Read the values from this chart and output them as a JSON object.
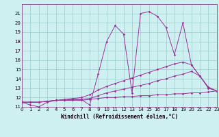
{
  "xlabel": "Windchill (Refroidissement éolien,°C)",
  "xlim": [
    0,
    23
  ],
  "ylim": [
    11,
    22
  ],
  "ytick_labels": [
    "11",
    "12",
    "13",
    "14",
    "15",
    "16",
    "17",
    "18",
    "19",
    "20",
    "21"
  ],
  "yticks": [
    11,
    12,
    13,
    14,
    15,
    16,
    17,
    18,
    19,
    20,
    21
  ],
  "xticks": [
    0,
    1,
    2,
    3,
    4,
    5,
    6,
    7,
    8,
    9,
    10,
    11,
    12,
    13,
    14,
    15,
    16,
    17,
    18,
    19,
    20,
    21,
    22,
    23
  ],
  "bg_color": "#cff0f0",
  "line_color": "#993399",
  "grid_color": "#99cccc",
  "lines": [
    {
      "x": [
        0,
        1,
        2,
        3,
        4,
        5,
        6,
        7,
        8,
        9,
        10,
        11,
        12,
        13,
        14,
        15,
        16,
        17,
        18,
        19,
        20,
        21,
        22,
        23
      ],
      "y": [
        11.5,
        11.2,
        11.0,
        11.5,
        11.7,
        11.7,
        11.8,
        11.8,
        11.2,
        14.5,
        18.0,
        19.7,
        18.8,
        12.5,
        21.0,
        21.2,
        20.7,
        19.5,
        16.6,
        20.0,
        15.5,
        14.3,
        13.0,
        12.7
      ]
    },
    {
      "x": [
        0,
        1,
        2,
        3,
        4,
        5,
        6,
        7,
        8,
        9,
        10,
        11,
        12,
        13,
        14,
        15,
        16,
        17,
        18,
        19,
        20,
        21,
        22,
        23
      ],
      "y": [
        11.5,
        11.5,
        11.5,
        11.6,
        11.7,
        11.8,
        11.9,
        12.0,
        12.3,
        12.8,
        13.2,
        13.5,
        13.8,
        14.1,
        14.4,
        14.7,
        15.0,
        15.3,
        15.6,
        15.8,
        15.5,
        14.3,
        13.1,
        12.7
      ]
    },
    {
      "x": [
        0,
        1,
        2,
        3,
        4,
        5,
        6,
        7,
        8,
        9,
        10,
        11,
        12,
        13,
        14,
        15,
        16,
        17,
        18,
        19,
        20,
        21,
        22,
        23
      ],
      "y": [
        11.5,
        11.5,
        11.5,
        11.6,
        11.7,
        11.7,
        11.8,
        11.8,
        11.9,
        12.2,
        12.5,
        12.7,
        12.9,
        13.1,
        13.3,
        13.5,
        13.8,
        14.0,
        14.3,
        14.5,
        14.8,
        14.3,
        13.1,
        12.7
      ]
    },
    {
      "x": [
        0,
        1,
        2,
        3,
        4,
        5,
        6,
        7,
        8,
        9,
        10,
        11,
        12,
        13,
        14,
        15,
        16,
        17,
        18,
        19,
        20,
        21,
        22,
        23
      ],
      "y": [
        11.5,
        11.5,
        11.5,
        11.6,
        11.7,
        11.7,
        11.7,
        11.7,
        11.8,
        11.9,
        12.0,
        12.0,
        12.1,
        12.1,
        12.2,
        12.2,
        12.3,
        12.3,
        12.4,
        12.4,
        12.5,
        12.5,
        12.6,
        12.7
      ]
    }
  ]
}
